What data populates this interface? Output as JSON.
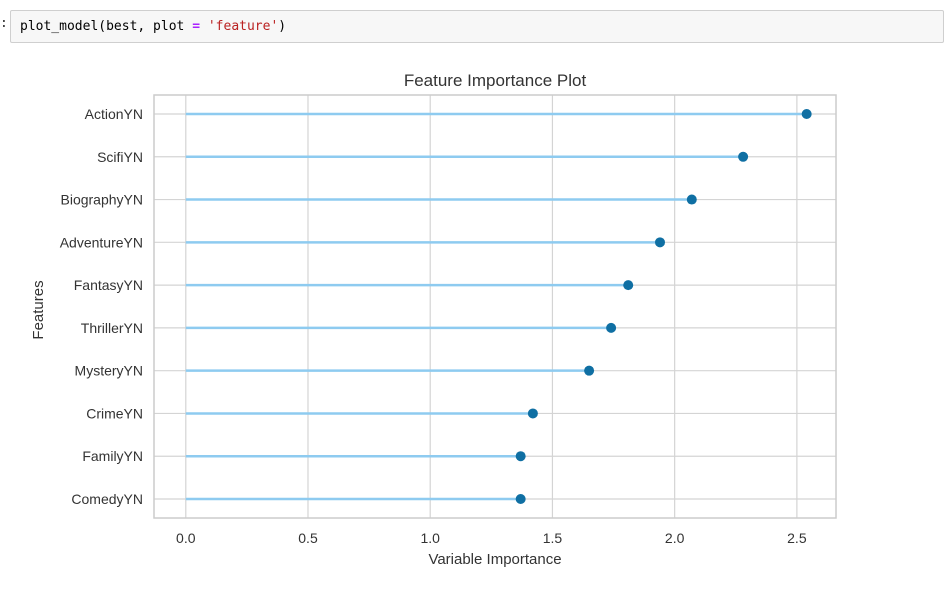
{
  "cell": {
    "prompt": ":",
    "code_parts": {
      "func": "plot_model(best, plot ",
      "op": "=",
      "space": " ",
      "str": "'feature'",
      "close": ")"
    }
  },
  "colors": {
    "stem": "#8ecbf0",
    "marker": "#0f6fa3",
    "grid": "#d4d4d4",
    "frame": "#cccccc",
    "text": "#333333"
  },
  "chart_data": {
    "type": "scatter",
    "style": "lollipop",
    "title": "Feature Importance Plot",
    "xlabel": "Variable Importance",
    "ylabel": "Features",
    "xlim": [
      -0.13,
      2.66
    ],
    "xticks": [
      "0.0",
      "0.5",
      "1.0",
      "1.5",
      "2.0",
      "2.5"
    ],
    "xtick_values": [
      0.0,
      0.5,
      1.0,
      1.5,
      2.0,
      2.5
    ],
    "grid": true,
    "categories": [
      "ActionYN",
      "ScifiYN",
      "BiographyYN",
      "AdventureYN",
      "FantasyYN",
      "ThrillerYN",
      "MysteryYN",
      "CrimeYN",
      "FamilyYN",
      "ComedyYN"
    ],
    "values": [
      2.54,
      2.28,
      2.07,
      1.94,
      1.81,
      1.74,
      1.65,
      1.42,
      1.37,
      1.37
    ]
  }
}
